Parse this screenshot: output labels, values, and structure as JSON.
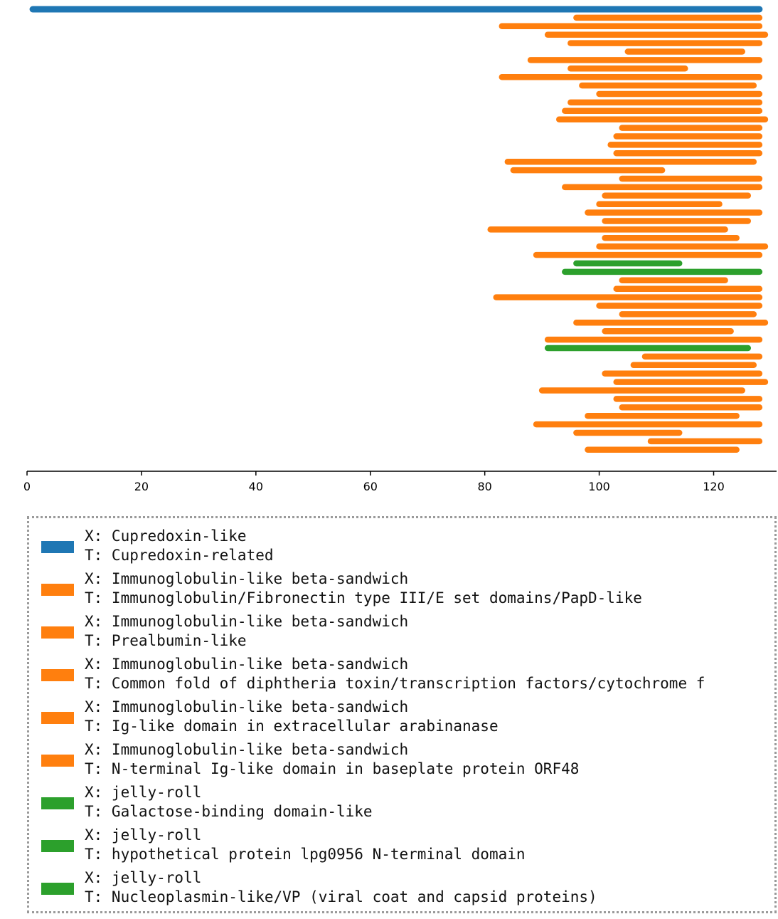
{
  "colors": {
    "blue": "#1f77b4",
    "orange": "#ff7f0e",
    "green": "#2ca02c"
  },
  "chart_data": {
    "type": "bar",
    "orientation": "horizontal-ranges",
    "title": "",
    "xlabel": "",
    "ylabel": "",
    "xlim": [
      0,
      131
    ],
    "x_ticks": [
      0,
      20,
      40,
      60,
      80,
      100,
      120
    ],
    "grid": false,
    "legend_placement": "below",
    "segments": [
      {
        "start": 1,
        "end": 128,
        "class": 0
      },
      {
        "start": 96,
        "end": 128,
        "class": 1
      },
      {
        "start": 83,
        "end": 128,
        "class": 1
      },
      {
        "start": 91,
        "end": 129,
        "class": 1
      },
      {
        "start": 95,
        "end": 128,
        "class": 1
      },
      {
        "start": 105,
        "end": 125,
        "class": 1
      },
      {
        "start": 88,
        "end": 128,
        "class": 1
      },
      {
        "start": 95,
        "end": 115,
        "class": 1
      },
      {
        "start": 83,
        "end": 128,
        "class": 1
      },
      {
        "start": 97,
        "end": 127,
        "class": 1
      },
      {
        "start": 100,
        "end": 128,
        "class": 1
      },
      {
        "start": 95,
        "end": 128,
        "class": 1
      },
      {
        "start": 94,
        "end": 128,
        "class": 1
      },
      {
        "start": 93,
        "end": 129,
        "class": 1
      },
      {
        "start": 104,
        "end": 128,
        "class": 1
      },
      {
        "start": 103,
        "end": 128,
        "class": 1
      },
      {
        "start": 102,
        "end": 128,
        "class": 1
      },
      {
        "start": 103,
        "end": 128,
        "class": 1
      },
      {
        "start": 84,
        "end": 127,
        "class": 1
      },
      {
        "start": 85,
        "end": 111,
        "class": 1
      },
      {
        "start": 104,
        "end": 128,
        "class": 1
      },
      {
        "start": 94,
        "end": 128,
        "class": 1
      },
      {
        "start": 101,
        "end": 126,
        "class": 1
      },
      {
        "start": 100,
        "end": 121,
        "class": 1
      },
      {
        "start": 98,
        "end": 128,
        "class": 1
      },
      {
        "start": 101,
        "end": 126,
        "class": 1
      },
      {
        "start": 81,
        "end": 122,
        "class": 1
      },
      {
        "start": 101,
        "end": 124,
        "class": 1
      },
      {
        "start": 100,
        "end": 129,
        "class": 1
      },
      {
        "start": 89,
        "end": 128,
        "class": 1
      },
      {
        "start": 96,
        "end": 114,
        "class": 6
      },
      {
        "start": 94,
        "end": 128,
        "class": 7
      },
      {
        "start": 104,
        "end": 122,
        "class": 1
      },
      {
        "start": 103,
        "end": 128,
        "class": 1
      },
      {
        "start": 82,
        "end": 128,
        "class": 1
      },
      {
        "start": 100,
        "end": 128,
        "class": 1
      },
      {
        "start": 104,
        "end": 127,
        "class": 1
      },
      {
        "start": 96,
        "end": 129,
        "class": 1
      },
      {
        "start": 101,
        "end": 123,
        "class": 1
      },
      {
        "start": 91,
        "end": 128,
        "class": 1
      },
      {
        "start": 91,
        "end": 126,
        "class": 8
      },
      {
        "start": 108,
        "end": 128,
        "class": 1
      },
      {
        "start": 106,
        "end": 127,
        "class": 1
      },
      {
        "start": 101,
        "end": 128,
        "class": 1
      },
      {
        "start": 103,
        "end": 129,
        "class": 1
      },
      {
        "start": 90,
        "end": 125,
        "class": 1
      },
      {
        "start": 103,
        "end": 128,
        "class": 1
      },
      {
        "start": 104,
        "end": 128,
        "class": 1
      },
      {
        "start": 98,
        "end": 124,
        "class": 1
      },
      {
        "start": 89,
        "end": 128,
        "class": 1
      },
      {
        "start": 96,
        "end": 114,
        "class": 1
      },
      {
        "start": 109,
        "end": 128,
        "class": 1
      },
      {
        "start": 98,
        "end": 124,
        "class": 1
      }
    ],
    "legend": [
      {
        "x": "X: Cupredoxin-like",
        "t": "T: Cupredoxin-related",
        "color": "#1f77b4"
      },
      {
        "x": "X: Immunoglobulin-like beta-sandwich",
        "t": "T: Immunoglobulin/Fibronectin type III/E set domains/PapD-like",
        "color": "#ff7f0e"
      },
      {
        "x": "X: Immunoglobulin-like beta-sandwich",
        "t": "T: Prealbumin-like",
        "color": "#ff7f0e"
      },
      {
        "x": "X: Immunoglobulin-like beta-sandwich",
        "t": "T: Common fold of diphtheria toxin/transcription factors/cytochrome f",
        "color": "#ff7f0e"
      },
      {
        "x": "X: Immunoglobulin-like beta-sandwich",
        "t": "T: Ig-like domain in extracellular arabinanase",
        "color": "#ff7f0e"
      },
      {
        "x": "X: Immunoglobulin-like beta-sandwich",
        "t": "T: N-terminal Ig-like domain in baseplate protein ORF48",
        "color": "#ff7f0e"
      },
      {
        "x": "X: jelly-roll",
        "t": "T: Galactose-binding domain-like",
        "color": "#2ca02c"
      },
      {
        "x": "X: jelly-roll",
        "t": "T: hypothetical protein lpg0956 N-terminal domain",
        "color": "#2ca02c"
      },
      {
        "x": "X: jelly-roll",
        "t": "T: Nucleoplasmin-like/VP (viral coat and capsid proteins)",
        "color": "#2ca02c"
      }
    ]
  }
}
